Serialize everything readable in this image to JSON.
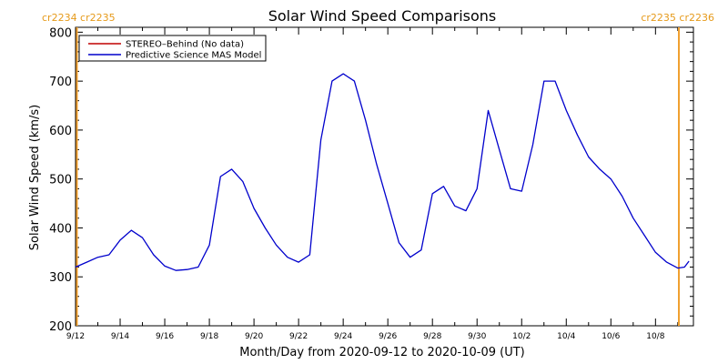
{
  "chart_data": {
    "type": "line",
    "title": "Solar Wind Speed Comparisons",
    "xlabel": "Month/Day from 2020-09-12 to 2020-10-09 (UT)",
    "ylabel": "Solar Wind Speed (km/s)",
    "ylim": [
      200,
      810
    ],
    "xlim_days": [
      0,
      27.7
    ],
    "x_tick_labels": [
      "9/12",
      "9/14",
      "9/16",
      "9/18",
      "9/20",
      "9/22",
      "9/24",
      "9/26",
      "9/28",
      "9/30",
      "10/2",
      "10/4",
      "10/6",
      "10/8"
    ],
    "y_ticks": [
      200,
      300,
      400,
      500,
      600,
      700,
      800
    ],
    "rotation_labels": {
      "left": "cr2234 cr2235",
      "right": "cr2235 cr2236"
    },
    "legend_position": "top-left",
    "series": [
      {
        "name": "STEREO–Behind (No data)",
        "color": "#c00000",
        "x": [],
        "y": []
      },
      {
        "name": "Predictive Science MAS Model",
        "color": "#0000cc",
        "x": [
          0,
          0.5,
          1,
          1.5,
          2,
          2.5,
          3,
          3.5,
          4,
          4.5,
          5,
          5.5,
          6,
          6.5,
          7,
          7.5,
          8,
          8.5,
          9,
          9.5,
          10,
          10.5,
          11,
          11.5,
          12,
          12.5,
          13,
          13.5,
          14,
          14.5,
          15,
          15.5,
          16,
          16.5,
          17,
          17.5,
          18,
          18.5,
          19,
          19.5,
          20,
          20.5,
          21,
          21.5,
          22,
          22.5,
          23,
          23.5,
          24,
          24.5,
          25,
          25.5,
          26,
          26.5,
          27,
          27.3,
          27.5
        ],
        "y": [
          320,
          330,
          340,
          345,
          375,
          395,
          380,
          345,
          322,
          313,
          315,
          320,
          365,
          505,
          520,
          495,
          440,
          400,
          365,
          340,
          330,
          345,
          580,
          700,
          715,
          700,
          620,
          530,
          450,
          370,
          340,
          355,
          470,
          485,
          445,
          435,
          480,
          640,
          560,
          480,
          475,
          570,
          700,
          700,
          640,
          590,
          545,
          520,
          500,
          465,
          420,
          385,
          350,
          330,
          318,
          320,
          332
        ]
      }
    ]
  }
}
